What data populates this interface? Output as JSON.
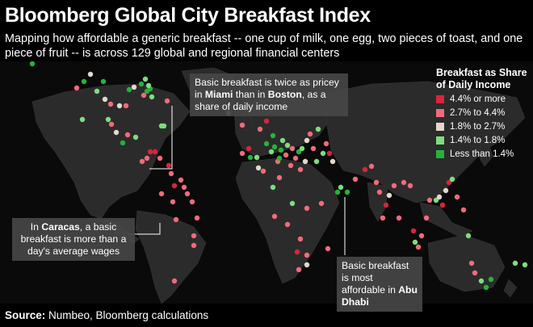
{
  "header": {
    "title": "Bloomberg Global City Breakfast Index",
    "subtitle": "Mapping how affordable a generic breakfast -- one cup of milk, one egg, two pieces of toast, and one piece of fruit -- is across 129 global and regional financial centers"
  },
  "legend": {
    "title": "Breakfast as Share of Daily Income",
    "items": [
      {
        "label": "4.4% or more",
        "color": "#d7263d"
      },
      {
        "label": "2.7% to 4.4%",
        "color": "#f06b7a"
      },
      {
        "label": "1.8% to 2.7%",
        "color": "#e4d8cc"
      },
      {
        "label": "1.4% to 1.8%",
        "color": "#7fdc80"
      },
      {
        "label": "Less than 1.4%",
        "color": "#27b23a"
      }
    ]
  },
  "callouts": {
    "miami_boston": {
      "t1": "Basic breakfast is twice as pricey in ",
      "b1": "Miami",
      "t2": " than in ",
      "b2": "Boston",
      "t3": ", as a share of daily income"
    },
    "caracas": {
      "t1": "In ",
      "b1": "Caracas",
      "t2": ", a basic breakfast is more than a day's average wages"
    },
    "abu_dhabi": {
      "t1": "Basic breakfast is most affordable in ",
      "b1": "Abu Dhabi"
    }
  },
  "source": {
    "label": "Source:",
    "text": " Numbeo, Bloomberg calculations"
  }
}
